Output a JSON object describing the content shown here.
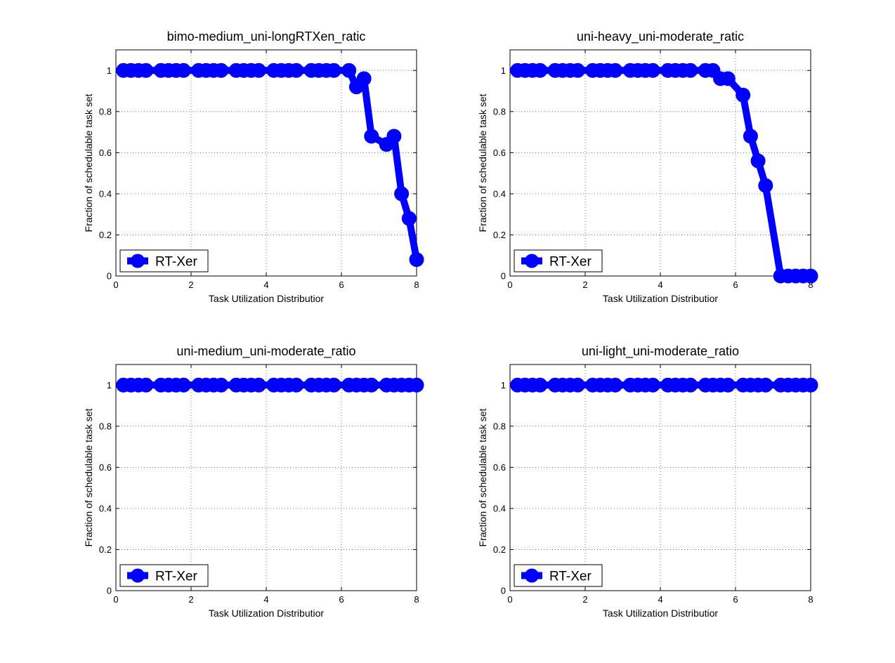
{
  "colors": {
    "series": "#0000ff",
    "axis": "#000000",
    "grid": "#555555",
    "background": "#ffffff"
  },
  "chart_data": [
    {
      "type": "line",
      "title": "bimo-medium_uni-longRTXen_ratic",
      "xlabel": "Task Utilization Distributior",
      "ylabel": "Fraction of schedulable task set",
      "xlim": [
        0,
        8
      ],
      "ylim": [
        0,
        1.1
      ],
      "xticks": [
        "0",
        "2",
        "4",
        "6",
        "8"
      ],
      "yticks": [
        "0",
        "0.2",
        "0.4",
        "0.6",
        "0.8",
        "1"
      ],
      "grid": true,
      "legend": {
        "position": "bottom-left",
        "entries": [
          "RT-Xer"
        ]
      },
      "series": [
        {
          "name": "RT-Xer",
          "color": "#0000ff",
          "marker": "circle",
          "x": [
            0.2,
            0.4,
            0.6,
            0.8,
            1.2,
            1.4,
            1.6,
            1.8,
            2.2,
            2.4,
            2.6,
            2.8,
            3.2,
            3.4,
            3.6,
            3.8,
            4.2,
            4.4,
            4.6,
            4.8,
            5.2,
            5.4,
            5.6,
            5.8,
            6.2,
            6.4,
            6.6,
            6.8,
            7.2,
            7.4,
            7.6,
            7.8,
            8.0
          ],
          "y": [
            1,
            1,
            1,
            1,
            1,
            1,
            1,
            1,
            1,
            1,
            1,
            1,
            1,
            1,
            1,
            1,
            1,
            1,
            1,
            1,
            1,
            1,
            1,
            1,
            1,
            0.92,
            0.96,
            0.68,
            0.64,
            0.68,
            0.4,
            0.28,
            0.08
          ]
        }
      ]
    },
    {
      "type": "line",
      "title": "uni-heavy_uni-moderate_ratic",
      "xlabel": "Task Utilization Distributior",
      "ylabel": "Fraction of schedulable task set",
      "xlim": [
        0,
        8
      ],
      "ylim": [
        0,
        1.1
      ],
      "xticks": [
        "0",
        "2",
        "4",
        "6",
        "8"
      ],
      "yticks": [
        "0",
        "0.2",
        "0.4",
        "0.6",
        "0.8",
        "1"
      ],
      "grid": true,
      "legend": {
        "position": "bottom-left",
        "entries": [
          "RT-Xer"
        ]
      },
      "series": [
        {
          "name": "RT-Xer",
          "color": "#0000ff",
          "marker": "circle",
          "x": [
            0.2,
            0.4,
            0.6,
            0.8,
            1.2,
            1.4,
            1.6,
            1.8,
            2.2,
            2.4,
            2.6,
            2.8,
            3.2,
            3.4,
            3.6,
            3.8,
            4.2,
            4.4,
            4.6,
            4.8,
            5.2,
            5.4,
            5.6,
            5.8,
            6.2,
            6.4,
            6.6,
            6.8,
            7.2,
            7.4,
            7.6,
            7.8,
            8.0
          ],
          "y": [
            1,
            1,
            1,
            1,
            1,
            1,
            1,
            1,
            1,
            1,
            1,
            1,
            1,
            1,
            1,
            1,
            1,
            1,
            1,
            1,
            1,
            1,
            0.96,
            0.96,
            0.88,
            0.68,
            0.56,
            0.44,
            0,
            0,
            0,
            0,
            0
          ]
        }
      ]
    },
    {
      "type": "line",
      "title": "uni-medium_uni-moderate_ratio",
      "xlabel": "Task Utilization Distributior",
      "ylabel": "Fraction of schedulable task set",
      "xlim": [
        0,
        8
      ],
      "ylim": [
        0,
        1.1
      ],
      "xticks": [
        "0",
        "2",
        "4",
        "6",
        "8"
      ],
      "yticks": [
        "0",
        "0.2",
        "0.4",
        "0.6",
        "0.8",
        "1"
      ],
      "grid": true,
      "legend": {
        "position": "bottom-left",
        "entries": [
          "RT-Xer"
        ]
      },
      "series": [
        {
          "name": "RT-Xer",
          "color": "#0000ff",
          "marker": "circle",
          "x": [
            0.2,
            0.4,
            0.6,
            0.8,
            1.2,
            1.4,
            1.6,
            1.8,
            2.2,
            2.4,
            2.6,
            2.8,
            3.2,
            3.4,
            3.6,
            3.8,
            4.2,
            4.4,
            4.6,
            4.8,
            5.2,
            5.4,
            5.6,
            5.8,
            6.2,
            6.4,
            6.6,
            6.8,
            7.2,
            7.4,
            7.6,
            7.8,
            8.0
          ],
          "y": [
            1,
            1,
            1,
            1,
            1,
            1,
            1,
            1,
            1,
            1,
            1,
            1,
            1,
            1,
            1,
            1,
            1,
            1,
            1,
            1,
            1,
            1,
            1,
            1,
            1,
            1,
            1,
            1,
            1,
            1,
            1,
            1,
            1
          ]
        }
      ]
    },
    {
      "type": "line",
      "title": "uni-light_uni-moderate_ratio",
      "xlabel": "Task Utilization Distributior",
      "ylabel": "Fraction of schedulable task set",
      "xlim": [
        0,
        8
      ],
      "ylim": [
        0,
        1.1
      ],
      "xticks": [
        "0",
        "2",
        "4",
        "6",
        "8"
      ],
      "yticks": [
        "0",
        "0.2",
        "0.4",
        "0.6",
        "0.8",
        "1"
      ],
      "grid": true,
      "legend": {
        "position": "bottom-left",
        "entries": [
          "RT-Xer"
        ]
      },
      "series": [
        {
          "name": "RT-Xer",
          "color": "#0000ff",
          "marker": "circle",
          "x": [
            0.2,
            0.4,
            0.6,
            0.8,
            1.2,
            1.4,
            1.6,
            1.8,
            2.2,
            2.4,
            2.6,
            2.8,
            3.2,
            3.4,
            3.6,
            3.8,
            4.2,
            4.4,
            4.6,
            4.8,
            5.2,
            5.4,
            5.6,
            5.8,
            6.2,
            6.4,
            6.6,
            6.8,
            7.2,
            7.4,
            7.6,
            7.8,
            8.0
          ],
          "y": [
            1,
            1,
            1,
            1,
            1,
            1,
            1,
            1,
            1,
            1,
            1,
            1,
            1,
            1,
            1,
            1,
            1,
            1,
            1,
            1,
            1,
            1,
            1,
            1,
            1,
            1,
            1,
            1,
            1,
            1,
            1,
            1,
            1
          ]
        }
      ]
    }
  ]
}
